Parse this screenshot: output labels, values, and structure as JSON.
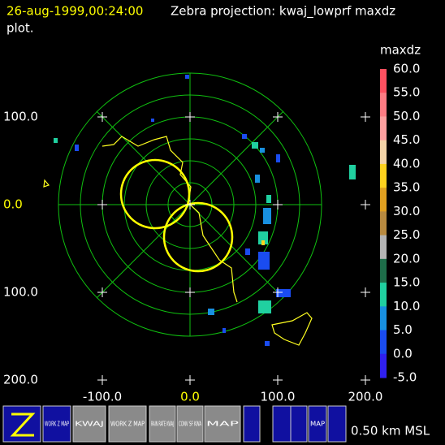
{
  "header": {
    "time": "26-aug-1999,00:24:00",
    "title": "Zebra projection: kwaj_lowprf maxdz",
    "title_cont": "plot."
  },
  "y_labels": [
    "100.0",
    "0.0",
    "100.0",
    "200.0"
  ],
  "x_labels": [
    "-100.0",
    "0.0",
    "100.0",
    "200.0"
  ],
  "colorbar": {
    "title": "maxdz",
    "labels": [
      "60.0",
      "55.0",
      "50.0",
      "45.0",
      "40.0",
      "35.0",
      "30.0",
      "25.0",
      "20.0",
      "15.0",
      "10.0",
      "5.0",
      "0.0",
      "-5.0"
    ],
    "colors": [
      "#ff5060",
      "#ff7c84",
      "#ffa0a0",
      "#f4d4a8",
      "#ffd21e",
      "#e0a020",
      "#b88a40",
      "#b4b4b4",
      "#1e6e4a",
      "#20d0a0",
      "#1890e0",
      "#1a4cf0",
      "#3020f0",
      "#7a10e8"
    ]
  },
  "buttons": [
    {
      "label": "WORK Z MAP"
    },
    {
      "label": "KWAJ"
    },
    {
      "label": "WORK Z MAP"
    },
    {
      "label": "RAIN RATE KWAJ"
    },
    {
      "label": "CONV SF KWA"
    },
    {
      "label": "MAP"
    },
    {
      "label": "MAP"
    }
  ],
  "footer": "0.50 km MSL"
}
